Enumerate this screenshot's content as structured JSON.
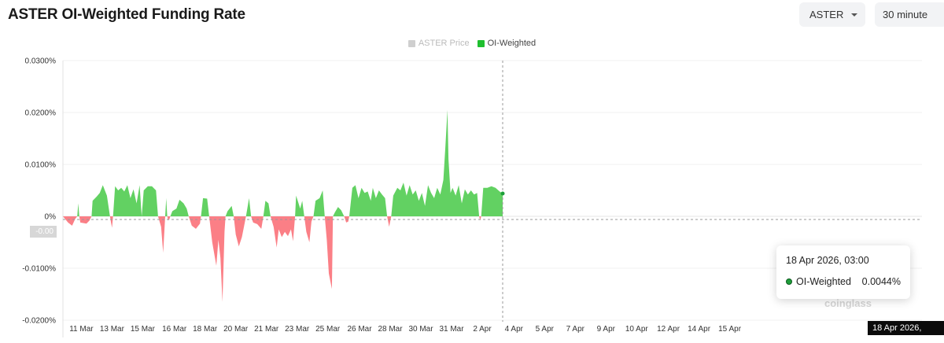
{
  "page": {
    "title": "ASTER OI-Weighted Funding Rate",
    "asset_select": "ASTER",
    "interval_select": "30 minute",
    "watermark": "coinglass"
  },
  "colors": {
    "positive": "#62d162",
    "negative": "#fb7f86",
    "legend_price": "#cfcfcf",
    "legend_oi": "#1fbf2f"
  },
  "crosshair": {
    "x_label": "18 Apr 2026, 03:00",
    "y_label": "-0.00"
  },
  "tooltip": {
    "date": "18 Apr 2026, 03:00",
    "series": "OI-Weighted",
    "value": "0.0044%"
  },
  "chart_data": {
    "type": "area",
    "legend": [
      {
        "name": "ASTER Price",
        "active": false
      },
      {
        "name": "OI-Weighted",
        "active": true
      }
    ],
    "legend_position": "top-center",
    "ylim": [
      -0.02,
      0.03
    ],
    "yticks": [
      {
        "v": 0.03,
        "label": "0.0300%"
      },
      {
        "v": 0.02,
        "label": "0.0200%"
      },
      {
        "v": 0.01,
        "label": "0.0100%"
      },
      {
        "v": 0,
        "label": "0%"
      },
      {
        "v": -0.01,
        "label": "-0.0100%"
      },
      {
        "v": -0.02,
        "label": "-0.0200%"
      }
    ],
    "xlim": [
      0,
      840
    ],
    "xticks": [
      {
        "t": 18,
        "label": "11 Mar"
      },
      {
        "t": 48,
        "label": "13 Mar"
      },
      {
        "t": 78,
        "label": "15 Mar"
      },
      {
        "t": 109,
        "label": "16 Mar"
      },
      {
        "t": 139,
        "label": "18 Mar"
      },
      {
        "t": 169,
        "label": "20 Mar"
      },
      {
        "t": 199,
        "label": "21 Mar"
      },
      {
        "t": 229,
        "label": "23 Mar"
      },
      {
        "t": 259,
        "label": "25 Mar"
      },
      {
        "t": 290,
        "label": "26 Mar"
      },
      {
        "t": 320,
        "label": "28 Mar"
      },
      {
        "t": 350,
        "label": "30 Mar"
      },
      {
        "t": 380,
        "label": "31 Mar"
      },
      {
        "t": 410,
        "label": "2 Apr"
      },
      {
        "t": 441,
        "label": "4 Apr"
      },
      {
        "t": 471,
        "label": "5 Apr"
      },
      {
        "t": 501,
        "label": "7 Apr"
      },
      {
        "t": 531,
        "label": "9 Apr"
      },
      {
        "t": 561,
        "label": "10 Apr"
      },
      {
        "t": 592,
        "label": "12 Apr"
      },
      {
        "t": 622,
        "label": "14 Apr"
      },
      {
        "t": 652,
        "label": "15 Apr"
      }
    ],
    "series": [
      {
        "name": "OI-Weighted",
        "points": [
          [
            0,
            0.0
          ],
          [
            5,
            -0.0012
          ],
          [
            9,
            -0.0018
          ],
          [
            12,
            -0.0005
          ],
          [
            14,
            0.0
          ],
          [
            15,
            0.0025
          ],
          [
            16,
            0.0
          ],
          [
            17,
            -0.0012
          ],
          [
            23,
            -0.0014
          ],
          [
            26,
            -0.0008
          ],
          [
            28,
            0.0
          ],
          [
            29,
            0.003
          ],
          [
            33,
            0.0038
          ],
          [
            36,
            0.0045
          ],
          [
            39,
            0.006
          ],
          [
            43,
            0.004
          ],
          [
            46,
            0.0
          ],
          [
            47,
            -0.0012
          ],
          [
            48,
            -0.0022
          ],
          [
            49,
            0.0
          ],
          [
            51,
            0.0058
          ],
          [
            54,
            0.005
          ],
          [
            57,
            0.0055
          ],
          [
            60,
            0.0048
          ],
          [
            63,
            0.006
          ],
          [
            66,
            0.0035
          ],
          [
            69,
            0.0052
          ],
          [
            72,
            0.0025
          ],
          [
            75,
            0.006
          ],
          [
            77,
            0.0
          ],
          [
            79,
            0.005
          ],
          [
            83,
            0.0058
          ],
          [
            87,
            0.0058
          ],
          [
            91,
            0.005
          ],
          [
            93,
            0.0
          ],
          [
            96,
            -0.002
          ],
          [
            98,
            -0.007
          ],
          [
            100,
            0.0
          ],
          [
            101,
            0.0035
          ],
          [
            102,
            0.0
          ],
          [
            103,
            -0.0008
          ],
          [
            104,
            -0.0006
          ],
          [
            105,
            0.0
          ],
          [
            107,
            0.001
          ],
          [
            111,
            0.0015
          ],
          [
            114,
            0.0032
          ],
          [
            118,
            0.0025
          ],
          [
            121,
            0.0015
          ],
          [
            123,
            0.0
          ],
          [
            126,
            -0.0018
          ],
          [
            130,
            -0.0024
          ],
          [
            134,
            -0.0014
          ],
          [
            135,
            0.0
          ],
          [
            137,
            0.0035
          ],
          [
            141,
            0.0034
          ],
          [
            143,
            0.0
          ],
          [
            146,
            -0.005
          ],
          [
            150,
            -0.0095
          ],
          [
            152,
            -0.0045
          ],
          [
            154,
            -0.008
          ],
          [
            156,
            -0.0165
          ],
          [
            158,
            -0.003
          ],
          [
            159,
            0.0
          ],
          [
            161,
            0.001
          ],
          [
            165,
            0.002
          ],
          [
            167,
            0.0
          ],
          [
            169,
            -0.0035
          ],
          [
            172,
            -0.0058
          ],
          [
            175,
            -0.004
          ],
          [
            177,
            -0.002
          ],
          [
            179,
            0.0
          ],
          [
            182,
            0.0035
          ],
          [
            184,
            0.0
          ],
          [
            186,
            -0.0012
          ],
          [
            190,
            -0.0015
          ],
          [
            194,
            -0.0024
          ],
          [
            196,
            0.0
          ],
          [
            198,
            0.003
          ],
          [
            201,
            0.0025
          ],
          [
            203,
            0.0
          ],
          [
            206,
            -0.002
          ],
          [
            209,
            -0.006
          ],
          [
            211,
            -0.0025
          ],
          [
            214,
            -0.004
          ],
          [
            217,
            -0.003
          ],
          [
            220,
            -0.0038
          ],
          [
            223,
            -0.0025
          ],
          [
            225,
            -0.0048
          ],
          [
            227,
            0.0
          ],
          [
            228,
            0.004
          ],
          [
            232,
            0.0015
          ],
          [
            234,
            0.003
          ],
          [
            236,
            0.0
          ],
          [
            238,
            -0.003
          ],
          [
            241,
            -0.005
          ],
          [
            243,
            -0.001
          ],
          [
            245,
            0.0
          ],
          [
            247,
            0.003
          ],
          [
            251,
            0.0035
          ],
          [
            254,
            0.005
          ],
          [
            256,
            0.0
          ],
          [
            258,
            -0.0045
          ],
          [
            260,
            -0.011
          ],
          [
            263,
            -0.014
          ],
          [
            264,
            0.0
          ],
          [
            266,
            0.0008
          ],
          [
            269,
            0.0018
          ],
          [
            272,
            0.0012
          ],
          [
            275,
            0.0
          ],
          [
            277,
            -0.0012
          ],
          [
            279,
            -0.001
          ],
          [
            280,
            0.0
          ],
          [
            283,
            0.0055
          ],
          [
            286,
            0.006
          ],
          [
            289,
            0.0035
          ],
          [
            292,
            0.0055
          ],
          [
            295,
            0.0045
          ],
          [
            298,
            0.0048
          ],
          [
            301,
            0.003
          ],
          [
            303,
            0.0055
          ],
          [
            306,
            0.0035
          ],
          [
            309,
            0.005
          ],
          [
            312,
            0.0042
          ],
          [
            315,
            0.0035
          ],
          [
            317,
            0.0
          ],
          [
            319,
            -0.002
          ],
          [
            321,
            0.0
          ],
          [
            323,
            0.004
          ],
          [
            327,
            0.0055
          ],
          [
            330,
            0.005
          ],
          [
            333,
            0.0065
          ],
          [
            336,
            0.004
          ],
          [
            339,
            0.006
          ],
          [
            342,
            0.0042
          ],
          [
            345,
            0.005
          ],
          [
            348,
            0.003
          ],
          [
            351,
            0.0045
          ],
          [
            354,
            0.002
          ],
          [
            357,
            0.006
          ],
          [
            360,
            0.0045
          ],
          [
            363,
            0.0035
          ],
          [
            366,
            0.0055
          ],
          [
            369,
            0.0042
          ],
          [
            372,
            0.007
          ],
          [
            374,
            0.0135
          ],
          [
            376,
            0.0205
          ],
          [
            377,
            0.011
          ],
          [
            379,
            0.0045
          ],
          [
            381,
            0.0055
          ],
          [
            384,
            0.004
          ],
          [
            387,
            0.006
          ],
          [
            390,
            0.0025
          ],
          [
            393,
            0.0052
          ],
          [
            396,
            0.0042
          ],
          [
            399,
            0.005
          ],
          [
            402,
            0.0042
          ],
          [
            405,
            0.0045
          ],
          [
            407,
            0.0
          ],
          [
            408,
            -0.0008
          ],
          [
            409,
            0.0
          ],
          [
            411,
            0.0055
          ],
          [
            415,
            0.0055
          ],
          [
            419,
            0.0058
          ],
          [
            423,
            0.0055
          ],
          [
            427,
            0.0048
          ],
          [
            430,
            0.0044
          ]
        ]
      }
    ]
  }
}
